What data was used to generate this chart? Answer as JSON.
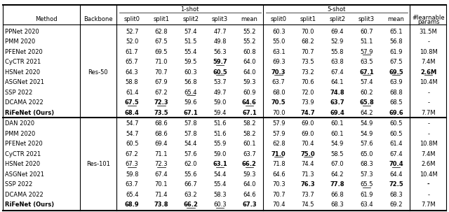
{
  "rows_group1": [
    [
      "PPNet 2020",
      "52.7",
      "62.8",
      "57.4",
      "47.7",
      "55.2",
      "60.3",
      "70.0",
      "69.4",
      "60.7",
      "65.1",
      "31.5M"
    ],
    [
      "PMM 2020",
      "52.0",
      "67.5",
      "51.5",
      "49.8",
      "55.2",
      "55.0",
      "68.2",
      "52.9",
      "51.1",
      "56.8",
      "-"
    ],
    [
      "PFENet 2020",
      "61.7",
      "69.5",
      "55.4",
      "56.3",
      "60.8",
      "63.1",
      "70.7",
      "55.8",
      "57.9",
      "61.9",
      "10.8M"
    ],
    [
      "CyCTR 2021",
      "65.7",
      "71.0",
      "59.5",
      "59.7",
      "64.0",
      "69.3",
      "73.5",
      "63.8",
      "63.5",
      "67.5",
      "7.4M"
    ],
    [
      "HSNet 2020",
      "64.3",
      "70.7",
      "60.3",
      "60.5",
      "64.0",
      "70.3",
      "73.2",
      "67.4",
      "67.1",
      "69.5",
      "2.6M"
    ],
    [
      "ASGNet 2021",
      "58.8",
      "67.9",
      "56.8",
      "53.7",
      "59.3",
      "63.7",
      "70.6",
      "64.1",
      "57.4",
      "63.9",
      "10.4M"
    ],
    [
      "SSP 2022",
      "61.4",
      "67.2",
      "65.4",
      "49.7",
      "60.9",
      "68.0",
      "72.0",
      "74.8",
      "60.2",
      "68.8",
      "-"
    ],
    [
      "DCAMA 2022",
      "67.5",
      "72.3",
      "59.6",
      "59.0",
      "64.6",
      "70.5",
      "73.9",
      "63.7",
      "65.8",
      "68.5",
      "-"
    ],
    [
      "RiFeNet (Ours)",
      "68.4",
      "73.5",
      "67.1",
      "59.4",
      "67.1",
      "70.0",
      "74.7",
      "69.4",
      "64.2",
      "69.6",
      "7.7M"
    ]
  ],
  "rows_group2": [
    [
      "DAN 2020",
      "54.7",
      "68.6",
      "57.8",
      "51.6",
      "58.2",
      "57.9",
      "69.0",
      "60.1",
      "54.9",
      "60.5",
      "-"
    ],
    [
      "PMM 2020",
      "54.7",
      "68.6",
      "57.8",
      "51.6",
      "58.2",
      "57.9",
      "69.0",
      "60.1",
      "54.9",
      "60.5",
      "-"
    ],
    [
      "PFENet 2020",
      "60.5",
      "69.4",
      "54.4",
      "55.9",
      "60.1",
      "62.8",
      "70.4",
      "54.9",
      "57.6",
      "61.4",
      "10.8M"
    ],
    [
      "CyCTR 2021",
      "67.2",
      "71.1",
      "57.6",
      "59.0",
      "63.7",
      "71.0",
      "75.0",
      "58.5",
      "65.0",
      "67.4",
      "7.4M"
    ],
    [
      "HSNet 2020",
      "67.3",
      "72.3",
      "62.0",
      "63.1",
      "66.2",
      "71.8",
      "74.4",
      "67.0",
      "68.3",
      "70.4",
      "2.6M"
    ],
    [
      "ASGNet 2021",
      "59.8",
      "67.4",
      "55.6",
      "54.4",
      "59.3",
      "64.6",
      "71.3",
      "64.2",
      "57.3",
      "64.4",
      "10.4M"
    ],
    [
      "SSP 2022",
      "63.7",
      "70.1",
      "66.7",
      "55.4",
      "64.0",
      "70.3",
      "76.3",
      "77.8",
      "65.5",
      "72.5",
      "-"
    ],
    [
      "DCAMA 2022",
      "65.4",
      "71.4",
      "63.2",
      "58.3",
      "64.6",
      "70.7",
      "73.7",
      "66.8",
      "61.9",
      "68.3",
      "-"
    ],
    [
      "RiFeNet (Ours)",
      "68.9",
      "73.8",
      "66.2",
      "60.3",
      "67.3",
      "70.4",
      "74.5",
      "68.3",
      "63.4",
      "69.2",
      "7.7M"
    ]
  ],
  "backbone_group1": "Res-50",
  "backbone_group2": "Res-101",
  "col_headers": [
    "split0",
    "split1",
    "split2",
    "split3",
    "mean",
    "split0",
    "split1",
    "split2",
    "split3",
    "mean",
    "#learnable\nparams"
  ],
  "bold_group1": {
    "0": [],
    "1": [],
    "2": [],
    "3": [
      3
    ],
    "4": [
      3,
      5,
      8,
      9,
      10
    ],
    "5": [],
    "6": [
      7
    ],
    "7": [
      0,
      1,
      4,
      5,
      7,
      8
    ],
    "8": [
      0,
      1,
      2,
      4,
      6,
      7,
      9
    ]
  },
  "underline_group1": {
    "0": [],
    "1": [],
    "2": [
      8
    ],
    "3": [
      3
    ],
    "4": [
      3,
      5,
      8,
      9,
      10
    ],
    "5": [],
    "6": [
      2
    ],
    "7": [
      0,
      1,
      4,
      8
    ],
    "8": []
  },
  "bold_group2": {
    "0": [],
    "1": [],
    "2": [],
    "3": [
      5,
      6
    ],
    "4": [
      3,
      4,
      9
    ],
    "5": [],
    "6": [
      6,
      7,
      9,
      10
    ],
    "7": [],
    "8": [
      0,
      1,
      2,
      4
    ]
  },
  "underline_group2": {
    "0": [],
    "1": [],
    "2": [],
    "3": [
      5,
      6
    ],
    "4": [
      0,
      1,
      3,
      4,
      9
    ],
    "5": [],
    "6": [
      8
    ],
    "7": [],
    "8": [
      2,
      3
    ]
  }
}
